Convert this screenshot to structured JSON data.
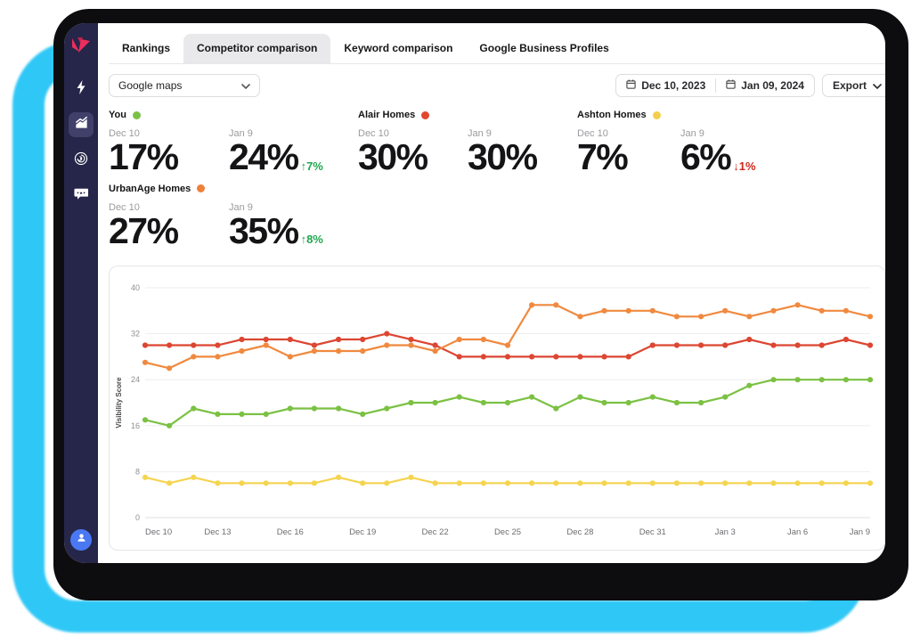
{
  "colors": {
    "frame_cyan": "#2fc7f6",
    "sidebar_bg": "#26264a",
    "logo_pink": "#ee2d5d",
    "logo_pink_dark": "#c71e4a",
    "avatar_blue": "#4a78f3",
    "active_tab_bg": "#e9e9eb",
    "delta_up_green": "#1ea94c",
    "delta_down_red": "#d2271b"
  },
  "sidebar": {
    "logo_name": "local-falcon-logo",
    "items": [
      {
        "name": "bolt",
        "active": false
      },
      {
        "name": "area-chart",
        "active": true
      },
      {
        "name": "radar-scan",
        "active": false
      },
      {
        "name": "chat-reviews",
        "active": false
      }
    ]
  },
  "tabs": [
    {
      "label": "Rankings",
      "active": false
    },
    {
      "label": "Competitor comparison",
      "active": true
    },
    {
      "label": "Keyword comparison",
      "active": false
    },
    {
      "label": "Google Business Profiles",
      "active": false
    }
  ],
  "toolbar": {
    "map_select_value": "Google maps",
    "date_start": "Dec 10, 2023",
    "date_end": "Jan 09, 2024",
    "export_label": "Export"
  },
  "stats": [
    {
      "name": "You",
      "color": "#7bc143",
      "cols": [
        {
          "period": "Dec 10",
          "value": "17%"
        },
        {
          "period": "Jan 9",
          "value": "24%",
          "delta": "7%",
          "direction": "up"
        }
      ]
    },
    {
      "name": "Alair Homes",
      "color": "#e2462e",
      "cols": [
        {
          "period": "Dec 10",
          "value": "30%"
        },
        {
          "period": "Jan 9",
          "value": "30%"
        }
      ]
    },
    {
      "name": "Ashton Homes",
      "color": "#f4cf4e",
      "cols": [
        {
          "period": "Dec 10",
          "value": "7%"
        },
        {
          "period": "Jan 9",
          "value": "6%",
          "delta": "1%",
          "direction": "down"
        }
      ]
    },
    {
      "name": "UrbanAge Homes",
      "color": "#ee8038",
      "cols": [
        {
          "period": "Dec 10",
          "value": "27%"
        },
        {
          "period": "Jan 9",
          "value": "35%",
          "delta": "8%",
          "direction": "up"
        }
      ]
    }
  ],
  "chart_data": {
    "type": "line",
    "title": "",
    "xlabel": "",
    "ylabel": "Visibility Score",
    "ylim": [
      0,
      40
    ],
    "yticks": [
      0,
      8,
      16,
      24,
      32,
      40
    ],
    "grid": true,
    "legend_position": "none",
    "x_tick_every": 3,
    "x": [
      "Dec 10",
      "Dec 11",
      "Dec 12",
      "Dec 13",
      "Dec 14",
      "Dec 15",
      "Dec 16",
      "Dec 17",
      "Dec 18",
      "Dec 19",
      "Dec 20",
      "Dec 21",
      "Dec 22",
      "Dec 23",
      "Dec 24",
      "Dec 25",
      "Dec 26",
      "Dec 27",
      "Dec 28",
      "Dec 29",
      "Dec 30",
      "Dec 31",
      "Jan 1",
      "Jan 2",
      "Jan 3",
      "Jan 4",
      "Jan 5",
      "Jan 6",
      "Jan 7",
      "Jan 8",
      "Jan 9"
    ],
    "series": [
      {
        "name": "Ashton Homes",
        "color": "#f5d44e",
        "values": [
          7,
          6,
          7,
          6,
          6,
          6,
          6,
          6,
          7,
          6,
          6,
          7,
          6,
          6,
          6,
          6,
          6,
          6,
          6,
          6,
          6,
          6,
          6,
          6,
          6,
          6,
          6,
          6,
          6,
          6,
          6
        ]
      },
      {
        "name": "You",
        "color": "#7bc143",
        "values": [
          17,
          16,
          19,
          18,
          18,
          18,
          19,
          19,
          19,
          18,
          19,
          20,
          20,
          21,
          20,
          20,
          21,
          19,
          21,
          20,
          20,
          21,
          20,
          20,
          21,
          23,
          24,
          24,
          24,
          24,
          24
        ]
      },
      {
        "name": "Alair Homes",
        "color": "#dc4632",
        "values": [
          30,
          30,
          30,
          30,
          31,
          31,
          31,
          30,
          31,
          31,
          32,
          31,
          30,
          28,
          28,
          28,
          28,
          28,
          28,
          28,
          28,
          30,
          30,
          30,
          30,
          31,
          30,
          30,
          30,
          31,
          30
        ]
      },
      {
        "name": "UrbanAge Homes",
        "color": "#f0893f",
        "values": [
          27,
          26,
          28,
          28,
          29,
          30,
          28,
          29,
          29,
          29,
          30,
          30,
          29,
          31,
          31,
          30,
          37,
          37,
          35,
          36,
          36,
          36,
          35,
          35,
          36,
          35,
          36,
          37,
          36,
          36,
          35
        ]
      }
    ]
  }
}
